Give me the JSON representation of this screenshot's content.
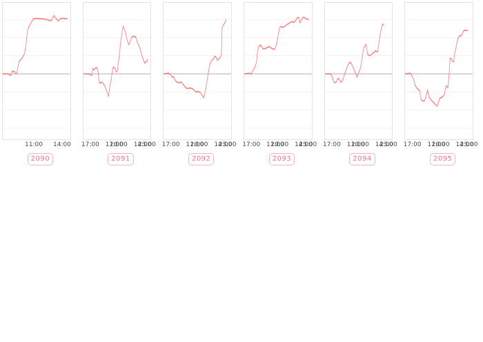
{
  "colors": {
    "line": "#f48282",
    "zero_line": "#bdbdbd",
    "grid_line": "#f1f1f1",
    "frame_border": "#e3e3e3",
    "badge_border": "#f8b1c3",
    "badge_text": "#ee7387",
    "tick_text": "#4a4a4a"
  },
  "chart_config": {
    "type": "line",
    "x_tick_labels": [
      "11:00",
      "14:00",
      "17:00",
      "20:00",
      "23:00"
    ],
    "x_tick_hours": [
      11,
      14,
      17,
      20,
      23
    ],
    "xlim_hours": [
      7.63,
      23.45
    ],
    "ylim_units": [
      -3.61,
      3.92
    ],
    "grid": "horizontal-only",
    "y_axis_tick_labels": "none-visible",
    "baseline_value": 0,
    "y_unit_note": "relative units: 1 unit = one gridline spacing, 0 = gray reference line",
    "legend": "none"
  },
  "chart_data": [
    {
      "label": "2090",
      "type": "line",
      "points": [
        [
          7.6,
          0
        ],
        [
          8.9,
          0
        ],
        [
          9.4,
          -0.09
        ],
        [
          9.6,
          -0.06
        ],
        [
          9.8,
          0.15
        ],
        [
          10.1,
          0.11
        ],
        [
          10.3,
          0.15
        ],
        [
          10.6,
          0.02
        ],
        [
          10.8,
          0
        ],
        [
          11.0,
          0.09
        ],
        [
          11.1,
          0.31
        ],
        [
          11.4,
          0.63
        ],
        [
          11.6,
          0.72
        ],
        [
          11.9,
          0.79
        ],
        [
          12.3,
          0.91
        ],
        [
          12.7,
          1.09
        ],
        [
          13.0,
          1.45
        ],
        [
          13.3,
          2.08
        ],
        [
          13.5,
          2.48
        ],
        [
          13.8,
          2.6
        ],
        [
          14.2,
          2.79
        ],
        [
          14.6,
          2.96
        ],
        [
          14.9,
          3.04
        ],
        [
          15.4,
          3.06
        ],
        [
          16.2,
          3.04
        ],
        [
          16.9,
          3.03
        ],
        [
          17.6,
          3.01
        ],
        [
          18.4,
          2.97
        ],
        [
          18.8,
          2.93
        ],
        [
          19.1,
          2.96
        ],
        [
          19.4,
          3.11
        ],
        [
          19.7,
          3.21
        ],
        [
          20.0,
          3.08
        ],
        [
          20.3,
          3.01
        ],
        [
          20.7,
          2.91
        ],
        [
          21.0,
          3.01
        ],
        [
          21.4,
          3.06
        ],
        [
          22.0,
          3.06
        ],
        [
          22.7,
          3.04
        ]
      ]
    },
    {
      "label": "2091",
      "type": "line",
      "points": [
        [
          7.6,
          0
        ],
        [
          8.9,
          -0.01
        ],
        [
          9.3,
          -0.05
        ],
        [
          9.6,
          -0.08
        ],
        [
          9.8,
          0.3
        ],
        [
          10.1,
          0.21
        ],
        [
          10.3,
          0.28
        ],
        [
          10.6,
          0.35
        ],
        [
          10.9,
          0.28
        ],
        [
          11.1,
          0.03
        ],
        [
          11.3,
          -0.47
        ],
        [
          11.6,
          -0.53
        ],
        [
          11.9,
          -0.44
        ],
        [
          12.2,
          -0.52
        ],
        [
          12.6,
          -0.67
        ],
        [
          12.9,
          -0.84
        ],
        [
          13.3,
          -1.09
        ],
        [
          13.5,
          -1.26
        ],
        [
          13.8,
          -0.72
        ],
        [
          14.2,
          -0.19
        ],
        [
          14.5,
          0.3
        ],
        [
          14.8,
          0.39
        ],
        [
          15.1,
          0.23
        ],
        [
          15.3,
          0.1
        ],
        [
          15.6,
          0.19
        ],
        [
          16.0,
          0.94
        ],
        [
          16.4,
          1.82
        ],
        [
          16.8,
          2.45
        ],
        [
          17.0,
          2.63
        ],
        [
          17.3,
          2.39
        ],
        [
          17.6,
          2.18
        ],
        [
          17.9,
          1.85
        ],
        [
          18.3,
          1.6
        ],
        [
          18.6,
          1.8
        ],
        [
          19.0,
          2.04
        ],
        [
          19.4,
          2.06
        ],
        [
          19.8,
          2.05
        ],
        [
          20.0,
          1.97
        ],
        [
          20.3,
          1.7
        ],
        [
          20.7,
          1.53
        ],
        [
          21.0,
          1.32
        ],
        [
          21.3,
          1.04
        ],
        [
          21.6,
          0.84
        ],
        [
          22.0,
          0.59
        ],
        [
          22.4,
          0.67
        ],
        [
          22.7,
          0.79
        ]
      ]
    },
    {
      "label": "2092",
      "type": "line",
      "points": [
        [
          7.6,
          0
        ],
        [
          8.8,
          0.03
        ],
        [
          9.1,
          0
        ],
        [
          9.4,
          -0.09
        ],
        [
          9.6,
          -0.19
        ],
        [
          9.9,
          -0.14
        ],
        [
          10.1,
          -0.23
        ],
        [
          10.5,
          -0.4
        ],
        [
          10.9,
          -0.47
        ],
        [
          11.4,
          -0.49
        ],
        [
          11.8,
          -0.45
        ],
        [
          12.2,
          -0.57
        ],
        [
          12.7,
          -0.72
        ],
        [
          13.2,
          -0.82
        ],
        [
          13.6,
          -0.78
        ],
        [
          14.0,
          -0.79
        ],
        [
          14.5,
          -0.83
        ],
        [
          14.9,
          -0.92
        ],
        [
          15.2,
          -1.01
        ],
        [
          15.5,
          -0.97
        ],
        [
          15.9,
          -0.99
        ],
        [
          16.3,
          -1.03
        ],
        [
          16.7,
          -1.19
        ],
        [
          17.1,
          -1.32
        ],
        [
          17.4,
          -1.01
        ],
        [
          17.8,
          -0.47
        ],
        [
          18.2,
          0.13
        ],
        [
          18.5,
          0.54
        ],
        [
          18.9,
          0.72
        ],
        [
          19.3,
          0.82
        ],
        [
          19.7,
          0.97
        ],
        [
          20.0,
          0.91
        ],
        [
          20.3,
          0.73
        ],
        [
          20.6,
          0.82
        ],
        [
          21.0,
          0.93
        ],
        [
          21.2,
          1.07
        ],
        [
          21.3,
          1.7
        ],
        [
          21.4,
          2.55
        ],
        [
          21.6,
          2.67
        ],
        [
          21.9,
          2.77
        ],
        [
          22.1,
          2.86
        ],
        [
          22.3,
          2.98
        ]
      ]
    },
    {
      "label": "2093",
      "type": "line",
      "points": [
        [
          7.6,
          0
        ],
        [
          8.8,
          0.03
        ],
        [
          9.4,
          0
        ],
        [
          9.6,
          0.15
        ],
        [
          9.9,
          0.28
        ],
        [
          10.2,
          0.4
        ],
        [
          10.5,
          0.65
        ],
        [
          10.7,
          1.13
        ],
        [
          11.0,
          1.47
        ],
        [
          11.2,
          1.55
        ],
        [
          11.5,
          1.57
        ],
        [
          11.8,
          1.47
        ],
        [
          12.1,
          1.37
        ],
        [
          12.6,
          1.4
        ],
        [
          13.0,
          1.45
        ],
        [
          13.4,
          1.51
        ],
        [
          13.7,
          1.46
        ],
        [
          14.1,
          1.4
        ],
        [
          14.5,
          1.36
        ],
        [
          14.8,
          1.35
        ],
        [
          15.1,
          1.57
        ],
        [
          15.5,
          2.01
        ],
        [
          15.9,
          2.48
        ],
        [
          16.1,
          2.59
        ],
        [
          16.4,
          2.6
        ],
        [
          16.6,
          2.55
        ],
        [
          17.0,
          2.6
        ],
        [
          17.5,
          2.69
        ],
        [
          18.0,
          2.77
        ],
        [
          18.5,
          2.84
        ],
        [
          19.0,
          2.89
        ],
        [
          19.3,
          2.83
        ],
        [
          19.7,
          2.94
        ],
        [
          20.0,
          3.07
        ],
        [
          20.4,
          3.12
        ],
        [
          20.7,
          2.81
        ],
        [
          21.0,
          2.96
        ],
        [
          21.3,
          3.09
        ],
        [
          21.6,
          3.12
        ],
        [
          22.0,
          3.06
        ],
        [
          22.4,
          3.01
        ],
        [
          22.7,
          2.99
        ]
      ]
    },
    {
      "label": "2094",
      "type": "line",
      "points": [
        [
          7.6,
          0
        ],
        [
          8.8,
          0
        ],
        [
          9.1,
          -0.04
        ],
        [
          9.4,
          -0.21
        ],
        [
          9.7,
          -0.44
        ],
        [
          9.9,
          -0.49
        ],
        [
          10.3,
          -0.45
        ],
        [
          10.5,
          -0.31
        ],
        [
          10.8,
          -0.24
        ],
        [
          11.0,
          -0.31
        ],
        [
          11.3,
          -0.45
        ],
        [
          11.6,
          -0.43
        ],
        [
          11.9,
          -0.28
        ],
        [
          12.2,
          -0.04
        ],
        [
          12.5,
          0.16
        ],
        [
          12.9,
          0.42
        ],
        [
          13.2,
          0.57
        ],
        [
          13.6,
          0.64
        ],
        [
          13.9,
          0.53
        ],
        [
          14.3,
          0.3
        ],
        [
          14.7,
          0.1
        ],
        [
          15.0,
          -0.09
        ],
        [
          15.2,
          -0.19
        ],
        [
          15.6,
          0.1
        ],
        [
          16.0,
          0.35
        ],
        [
          16.3,
          0.82
        ],
        [
          16.6,
          1.26
        ],
        [
          16.8,
          1.45
        ],
        [
          17.1,
          1.55
        ],
        [
          17.3,
          1.64
        ],
        [
          17.6,
          1.09
        ],
        [
          18.0,
          1.01
        ],
        [
          18.3,
          1.02
        ],
        [
          18.7,
          1.11
        ],
        [
          19.1,
          1.18
        ],
        [
          19.5,
          1.27
        ],
        [
          19.7,
          1.21
        ],
        [
          20.0,
          1.25
        ],
        [
          20.4,
          1.92
        ],
        [
          20.8,
          2.45
        ],
        [
          21.1,
          2.75
        ],
        [
          21.4,
          2.68
        ]
      ]
    },
    {
      "label": "2095",
      "type": "line",
      "points": [
        [
          7.6,
          0
        ],
        [
          8.8,
          0.03
        ],
        [
          9.1,
          -0.06
        ],
        [
          9.4,
          -0.19
        ],
        [
          9.7,
          -0.36
        ],
        [
          10.0,
          -0.64
        ],
        [
          10.4,
          -0.78
        ],
        [
          10.8,
          -0.87
        ],
        [
          11.1,
          -0.94
        ],
        [
          11.4,
          -1.41
        ],
        [
          11.8,
          -1.5
        ],
        [
          12.2,
          -1.5
        ],
        [
          12.6,
          -1.22
        ],
        [
          12.9,
          -0.88
        ],
        [
          13.3,
          -1.3
        ],
        [
          13.7,
          -1.42
        ],
        [
          14.0,
          -1.52
        ],
        [
          14.4,
          -1.6
        ],
        [
          14.8,
          -1.7
        ],
        [
          15.1,
          -1.79
        ],
        [
          15.5,
          -1.57
        ],
        [
          15.8,
          -1.33
        ],
        [
          16.2,
          -1.3
        ],
        [
          16.5,
          -1.26
        ],
        [
          16.9,
          -1.12
        ],
        [
          17.2,
          -0.69
        ],
        [
          17.4,
          -0.65
        ],
        [
          17.7,
          -0.79
        ],
        [
          18.0,
          0.06
        ],
        [
          18.2,
          0.86
        ],
        [
          18.5,
          0.82
        ],
        [
          18.7,
          0.73
        ],
        [
          19.0,
          0.64
        ],
        [
          19.4,
          1.25
        ],
        [
          19.9,
          1.8
        ],
        [
          20.3,
          2.08
        ],
        [
          20.7,
          2.11
        ],
        [
          21.0,
          2.15
        ],
        [
          21.3,
          2.34
        ],
        [
          21.6,
          2.4
        ],
        [
          22.0,
          2.4
        ],
        [
          22.3,
          2.39
        ]
      ]
    }
  ]
}
